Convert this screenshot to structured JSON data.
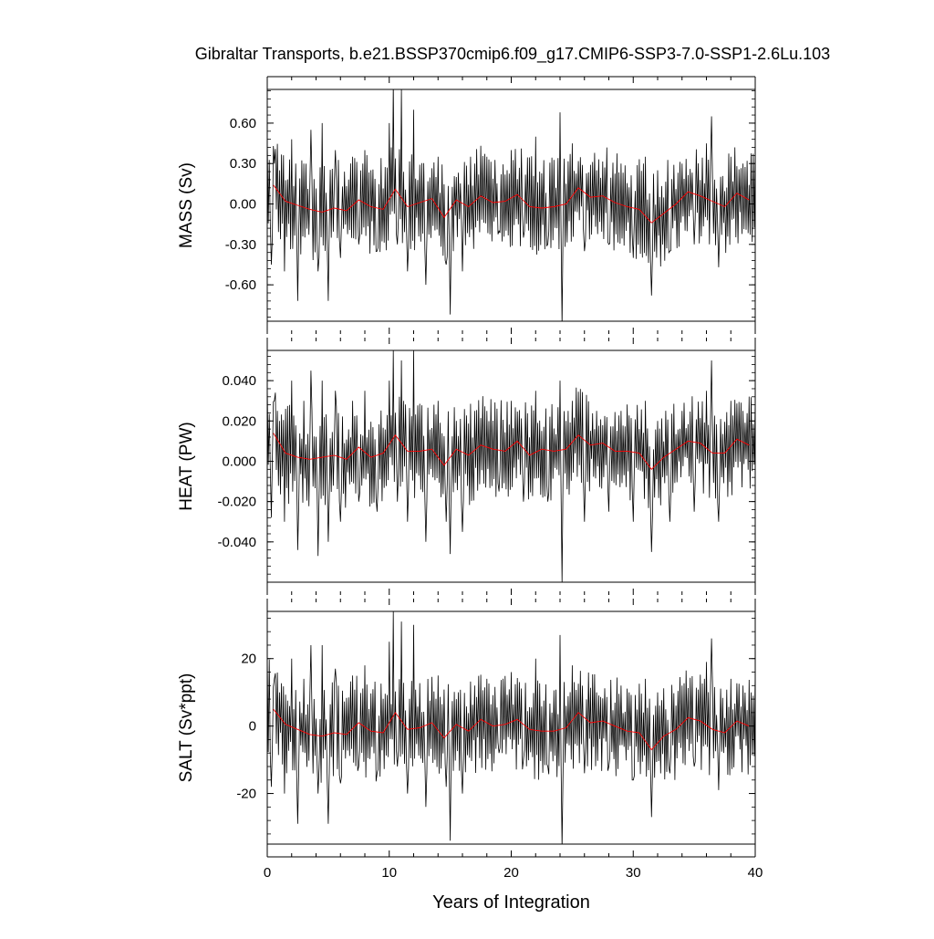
{
  "figure": {
    "title": "Gibraltar Transports, b.e21.BSSP370cmip6.f09_g17.CMIP6-SSP3-7.0-SSP1-2.6Lu.103"
  },
  "chart_data": [
    {
      "type": "line",
      "ylabel": "MASS (Sv)",
      "xlabel": "",
      "xlim": [
        0,
        40
      ],
      "ylim": [
        -0.87,
        0.85
      ],
      "ytick_values": [
        -0.6,
        -0.3,
        0.0,
        0.3,
        0.6
      ],
      "ytick_labels": [
        "-0.60",
        "-0.30",
        "0.00",
        "0.30",
        "0.60"
      ],
      "monthly_anchors": {
        "x": [
          0,
          0.3,
          0.6,
          1,
          1.4,
          2,
          2.5,
          3,
          3.6,
          4.2,
          4.5,
          5,
          5.6,
          6,
          7,
          7.5,
          8,
          9,
          10,
          10.3,
          10.7,
          11,
          11.5,
          12,
          13,
          14,
          14.7,
          15,
          15.5,
          16,
          17,
          18,
          19,
          20,
          21,
          22,
          23,
          24,
          24.2,
          24.5,
          25,
          26,
          27,
          28,
          29,
          30,
          31,
          31.5,
          32,
          33,
          34,
          35,
          36,
          36.4,
          37,
          38,
          39,
          40
        ],
        "y": [
          0.5,
          -0.45,
          0.3,
          0.25,
          -0.5,
          0.48,
          -0.72,
          0.3,
          0.55,
          -0.5,
          0.6,
          -0.72,
          0.4,
          -0.4,
          0.35,
          -0.3,
          0.4,
          -0.35,
          0.6,
          0.9,
          -0.3,
          0.85,
          -0.5,
          0.7,
          -0.6,
          0.35,
          -0.45,
          -0.82,
          0.2,
          -0.5,
          0.3,
          0.35,
          -0.2,
          0.4,
          -0.25,
          0.5,
          -0.3,
          0.68,
          -0.9,
          0.15,
          0.45,
          -0.35,
          0.25,
          -0.3,
          0.3,
          -0.4,
          0.35,
          -0.68,
          0.25,
          -0.35,
          0.3,
          -0.3,
          0.45,
          0.65,
          -0.47,
          0.35,
          0.3,
          0.4
        ]
      },
      "annual_mean": {
        "x": [
          0.5,
          1.5,
          2.5,
          3.5,
          4.5,
          5.5,
          6.5,
          7.5,
          8.5,
          9.5,
          10.5,
          11.5,
          12.5,
          13.5,
          14.5,
          15.5,
          16.5,
          17.5,
          18.5,
          19.5,
          20.5,
          21.5,
          22.5,
          23.5,
          24.5,
          25.5,
          26.5,
          27.5,
          28.5,
          29.5,
          30.5,
          31.5,
          32.5,
          33.5,
          34.5,
          35.5,
          36.5,
          37.5,
          38.5,
          39.5
        ],
        "y": [
          0.14,
          0.02,
          -0.01,
          -0.04,
          -0.06,
          -0.03,
          -0.05,
          0.03,
          -0.02,
          -0.04,
          0.11,
          -0.02,
          0.01,
          0.04,
          -0.1,
          0.03,
          -0.02,
          0.06,
          0.01,
          0.02,
          0.07,
          -0.02,
          -0.03,
          -0.02,
          0.0,
          0.12,
          0.05,
          0.06,
          0.01,
          -0.02,
          -0.04,
          -0.14,
          -0.07,
          0.0,
          0.09,
          0.06,
          0.02,
          -0.02,
          0.08,
          0.03
        ]
      }
    },
    {
      "type": "line",
      "ylabel": "HEAT (PW)",
      "xlabel": "",
      "xlim": [
        0,
        40
      ],
      "ylim": [
        -0.06,
        0.055
      ],
      "ytick_values": [
        -0.04,
        -0.02,
        0.0,
        0.02,
        0.04
      ],
      "ytick_labels": [
        "-0.040",
        "-0.020",
        "0.000",
        "0.020",
        "0.040"
      ],
      "monthly_anchors": {
        "x": [
          0,
          0.3,
          0.6,
          1,
          1.4,
          2,
          2.5,
          3,
          3.6,
          4.2,
          4.5,
          5,
          5.6,
          6,
          7,
          7.5,
          8,
          9,
          10,
          10.3,
          10.7,
          11,
          11.5,
          12,
          13,
          14,
          14.7,
          15,
          15.5,
          16,
          17,
          18,
          19,
          20,
          21,
          22,
          23,
          24,
          24.2,
          24.5,
          25,
          26,
          27,
          28,
          29,
          30,
          31,
          31.5,
          32,
          33,
          34,
          35,
          36,
          36.4,
          37,
          38,
          39,
          40
        ],
        "y": [
          0.038,
          -0.028,
          0.03,
          0.02,
          -0.03,
          0.04,
          -0.044,
          0.03,
          0.045,
          -0.047,
          0.04,
          -0.04,
          0.035,
          -0.03,
          0.03,
          -0.02,
          0.035,
          -0.025,
          0.04,
          0.055,
          -0.02,
          0.05,
          -0.03,
          0.055,
          -0.04,
          0.03,
          -0.03,
          -0.046,
          0.02,
          -0.035,
          0.025,
          0.025,
          -0.015,
          0.03,
          -0.02,
          0.035,
          -0.02,
          0.04,
          -0.06,
          0.02,
          0.03,
          -0.03,
          0.025,
          -0.025,
          0.025,
          -0.03,
          0.03,
          -0.045,
          0.02,
          -0.03,
          0.025,
          -0.025,
          0.035,
          0.05,
          -0.03,
          0.03,
          0.025,
          0.03
        ]
      },
      "annual_mean": {
        "x": [
          0.5,
          1.5,
          2.5,
          3.5,
          4.5,
          5.5,
          6.5,
          7.5,
          8.5,
          9.5,
          10.5,
          11.5,
          12.5,
          13.5,
          14.5,
          15.5,
          16.5,
          17.5,
          18.5,
          19.5,
          20.5,
          21.5,
          22.5,
          23.5,
          24.5,
          25.5,
          26.5,
          27.5,
          28.5,
          29.5,
          30.5,
          31.5,
          32.5,
          33.5,
          34.5,
          35.5,
          36.5,
          37.5,
          38.5,
          39.5
        ],
        "y": [
          0.014,
          0.004,
          0.002,
          0.001,
          0.002,
          0.003,
          0.001,
          0.007,
          0.002,
          0.004,
          0.013,
          0.005,
          0.005,
          0.006,
          -0.002,
          0.006,
          0.003,
          0.008,
          0.006,
          0.005,
          0.01,
          0.003,
          0.006,
          0.005,
          0.006,
          0.013,
          0.008,
          0.009,
          0.005,
          0.005,
          0.004,
          -0.004,
          0.002,
          0.006,
          0.01,
          0.009,
          0.004,
          0.004,
          0.011,
          0.008
        ]
      }
    },
    {
      "type": "line",
      "ylabel": "SALT (Sv*ppt)",
      "xlabel": "Years of Integration",
      "xlim": [
        0,
        40
      ],
      "ylim": [
        -35,
        34
      ],
      "xticks": [
        0,
        10,
        20,
        30,
        40
      ],
      "xtick_labels": [
        "0",
        "10",
        "20",
        "30",
        "40"
      ],
      "ytick_values": [
        -20,
        0,
        20
      ],
      "ytick_labels": [
        "-20",
        "0",
        "20"
      ],
      "monthly_anchors": {
        "x": [
          0,
          0.3,
          0.6,
          1,
          1.4,
          2,
          2.5,
          3,
          3.6,
          4.2,
          4.5,
          5,
          5.6,
          6,
          7,
          7.5,
          8,
          9,
          10,
          10.3,
          10.7,
          11,
          11.5,
          12,
          13,
          14,
          14.7,
          15,
          15.5,
          16,
          17,
          18,
          19,
          20,
          21,
          22,
          23,
          24,
          24.2,
          24.5,
          25,
          26,
          27,
          28,
          29,
          30,
          31,
          31.5,
          32,
          33,
          34,
          35,
          36,
          36.4,
          37,
          38,
          39,
          40
        ],
        "y": [
          21,
          -18,
          14,
          10,
          -20,
          20,
          -29,
          14,
          24,
          -20,
          24,
          -29,
          17,
          -17,
          15,
          -12,
          18,
          -14,
          25,
          34,
          -12,
          31,
          -20,
          30,
          -24,
          15,
          -18,
          -34,
          8,
          -20,
          12,
          14,
          -8,
          16,
          -10,
          20,
          -12,
          27,
          -36,
          6,
          18,
          -14,
          10,
          -12,
          12,
          -16,
          14,
          -27,
          10,
          -14,
          12,
          -12,
          19,
          26,
          -19,
          14,
          12,
          16
        ]
      },
      "annual_mean": {
        "x": [
          0.5,
          1.5,
          2.5,
          3.5,
          4.5,
          5.5,
          6.5,
          7.5,
          8.5,
          9.5,
          10.5,
          11.5,
          12.5,
          13.5,
          14.5,
          15.5,
          16.5,
          17.5,
          18.5,
          19.5,
          20.5,
          21.5,
          22.5,
          23.5,
          24.5,
          25.5,
          26.5,
          27.5,
          28.5,
          29.5,
          30.5,
          31.5,
          32.5,
          33.5,
          34.5,
          35.5,
          36.5,
          37.5,
          38.5,
          39.5
        ],
        "y": [
          5,
          0.5,
          -1,
          -2.5,
          -3,
          -2,
          -2.5,
          1,
          -1.5,
          -2,
          4,
          -1,
          -0.5,
          1,
          -3.5,
          0.5,
          -1.5,
          2,
          0,
          0.5,
          2,
          -1,
          -1.5,
          -1.5,
          -0.5,
          4,
          1,
          1.5,
          0,
          -1.5,
          -2,
          -7,
          -3,
          -1,
          2.5,
          1.5,
          -1,
          -2,
          1.5,
          0
        ]
      }
    }
  ]
}
